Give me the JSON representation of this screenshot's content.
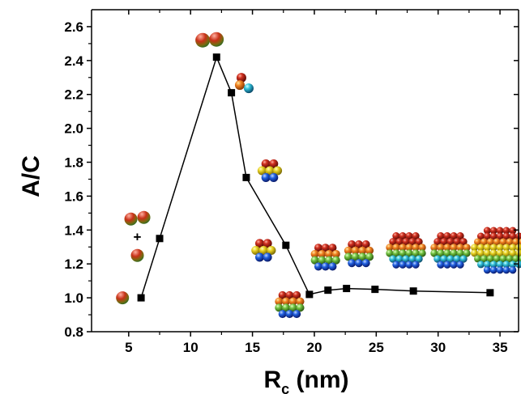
{
  "chart_data": {
    "type": "line",
    "xlabel_main": "R",
    "xlabel_sub": "c",
    "xlabel_unit": " (nm)",
    "ylabel": "A/C",
    "xlim": [
      2,
      36.5
    ],
    "ylim": [
      0.8,
      2.7
    ],
    "xticks": [
      5,
      10,
      15,
      20,
      25,
      30,
      35
    ],
    "yticks": [
      0.8,
      1.0,
      1.2,
      1.4,
      1.6,
      1.8,
      2.0,
      2.2,
      2.4,
      2.6
    ],
    "ytick_labels": [
      "0.8",
      "1.0",
      "1.2",
      "1.4",
      "1.6",
      "1.8",
      "2.0",
      "2.2",
      "2.4",
      "2.6"
    ],
    "grid": false,
    "plus_marker": "+",
    "series": [
      {
        "marker": "square",
        "color": "#000000",
        "x": [
          6.0,
          7.5,
          12.1,
          13.3,
          14.5,
          17.7,
          19.6,
          21.1,
          22.6,
          24.9,
          28.0,
          34.2
        ],
        "y": [
          1.0,
          1.35,
          2.42,
          2.21,
          1.71,
          1.31,
          1.02,
          1.045,
          1.055,
          1.05,
          1.04,
          1.03
        ]
      }
    ],
    "cluster_illustrations": [
      {
        "name": "single-sphere",
        "x": 4.5,
        "y": 1.0,
        "kind": "single"
      },
      {
        "name": "pair-plus-one",
        "x": 5.7,
        "y": 1.36,
        "kind": "pair-plus-one"
      },
      {
        "name": "dimer",
        "x": 11.5,
        "y": 2.52,
        "kind": "dimer"
      },
      {
        "name": "trimer",
        "x": 14.5,
        "y": 2.27,
        "kind": "trimer"
      },
      {
        "name": "tetramer",
        "x": 16.4,
        "y": 1.75,
        "kind": "small-cluster"
      },
      {
        "name": "cluster-5",
        "x": 15.9,
        "y": 1.28,
        "kind": "small-cluster"
      },
      {
        "name": "cluster-6",
        "x": 18.0,
        "y": 0.96,
        "kind": "medium-cluster"
      },
      {
        "name": "cluster-7",
        "x": 20.9,
        "y": 1.24,
        "kind": "medium-cluster"
      },
      {
        "name": "cluster-8",
        "x": 23.6,
        "y": 1.26,
        "kind": "medium-cluster"
      },
      {
        "name": "cluster-9",
        "x": 27.4,
        "y": 1.28,
        "kind": "large-cluster"
      },
      {
        "name": "cluster-10",
        "x": 31.0,
        "y": 1.28,
        "kind": "large-cluster"
      },
      {
        "name": "cluster-11",
        "x": 35.0,
        "y": 1.28,
        "kind": "largest-cluster"
      }
    ]
  }
}
